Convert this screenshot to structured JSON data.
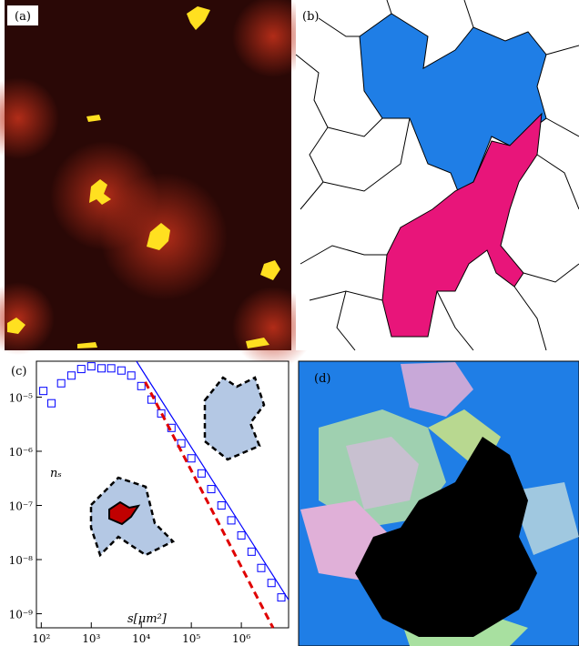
{
  "panel_labels": [
    "(a)",
    "(b)",
    "(c)",
    "(d)"
  ],
  "chart_data": {
    "type": "scatter",
    "xlabel": "s[μm²]",
    "ylabel": "nₛ",
    "xscale": "log",
    "yscale": "log",
    "xlim": [
      80,
      8800000
    ],
    "ylim": [
      5.5e-10,
      4.6e-05
    ],
    "xticks": [
      {
        "value": 100,
        "label": "10²"
      },
      {
        "value": 1000,
        "label": "10³"
      },
      {
        "value": 10000,
        "label": "10⁴"
      },
      {
        "value": 100000,
        "label": "10⁵"
      },
      {
        "value": 1000000,
        "label": "10⁶"
      }
    ],
    "yticks": [
      {
        "value": 1e-09,
        "label": "10⁻⁹"
      },
      {
        "value": 1e-08,
        "label": "10⁻⁸"
      },
      {
        "value": 1e-07,
        "label": "10⁻⁷"
      },
      {
        "value": 1e-06,
        "label": "10⁻⁶"
      },
      {
        "value": 1e-05,
        "label": "10⁻⁵"
      }
    ],
    "series": [
      {
        "color": "#0000ff",
        "marker": "square",
        "x": [
          110,
          160,
          250,
          400,
          630,
          1000,
          1600,
          2500,
          4000,
          6300,
          10000,
          16000,
          25000,
          40000,
          63000,
          100000,
          160000,
          250000,
          400000,
          630000,
          1000000,
          1600000,
          2500000,
          4000000,
          6300000
        ],
        "values": [
          1.3e-05,
          7.7e-06,
          1.8e-05,
          2.5e-05,
          3.3e-05,
          3.7e-05,
          3.4e-05,
          3.4e-05,
          3.1e-05,
          2.5e-05,
          1.6e-05,
          9e-06,
          5e-06,
          2.7e-06,
          1.4e-06,
          7.4e-07,
          3.9e-07,
          2e-07,
          1e-07,
          5.3e-08,
          2.8e-08,
          1.4e-08,
          7e-09,
          3.7e-09,
          2e-09
        ]
      },
      {
        "color": "#0000ff",
        "line": "solid",
        "x": [
          8000,
          8800000
        ],
        "values": [
          4.6e-05,
          1.8e-09
        ]
      },
      {
        "color": "#e00000",
        "line": "dashed",
        "x": [
          12000,
          4300000
        ],
        "values": [
          1.9e-05,
          5.5e-10
        ]
      }
    ]
  }
}
